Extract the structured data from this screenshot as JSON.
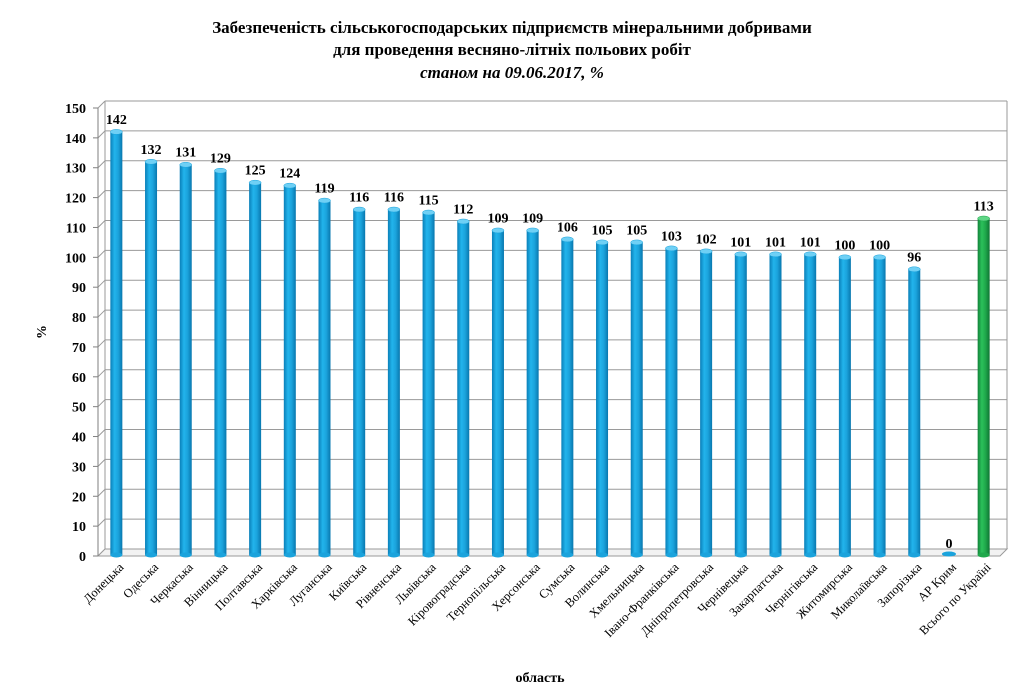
{
  "chart_data": {
    "type": "bar",
    "title_line1": "Забезпеченість сільськогосподарських підприємств мінеральними добривами",
    "title_line2": "для проведення весняно-літніх польових робіт",
    "subtitle": "станом на 09.06.2017, %",
    "xlabel": "область",
    "ylabel": "%",
    "ylim": [
      0,
      150
    ],
    "ytick_step": 10,
    "grid": true,
    "categories": [
      "Донецька",
      "Одеська",
      "Черкаська",
      "Вінницька",
      "Полтавська",
      "Харківська",
      "Луганська",
      "Київська",
      "Рівненська",
      "Львівська",
      "Кіровоградська",
      "Тернопільська",
      "Херсонська",
      "Сумська",
      "Волинська",
      "Хмельницька",
      "Івано-Франківська",
      "Дніпропетровська",
      "Чернівецька",
      "Закарпатська",
      "Чернігівська",
      "Житомирська",
      "Миколаївська",
      "Запорізька",
      "АР Крим",
      "Всього по Україні"
    ],
    "values": [
      142,
      132,
      131,
      129,
      125,
      124,
      119,
      116,
      116,
      115,
      112,
      109,
      109,
      106,
      105,
      105,
      103,
      102,
      101,
      101,
      101,
      100,
      100,
      96,
      0,
      113
    ],
    "colors": {
      "region": "#1BA3DC",
      "total": "#1FA84B"
    }
  }
}
